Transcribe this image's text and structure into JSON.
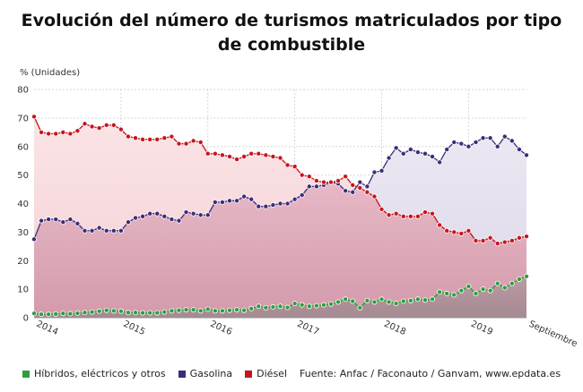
{
  "chart_data": {
    "type": "line",
    "title": "Evolución del número de turismos matriculados por tipo de combustible",
    "ylabel": "% (Unidades)",
    "ylim": [
      0,
      80
    ],
    "yticks": [
      0,
      10,
      20,
      30,
      40,
      50,
      60,
      70,
      80
    ],
    "xtick_labels": [
      "2014",
      "2015",
      "2016",
      "2017",
      "2018",
      "2019",
      "Septiembre"
    ],
    "grid": true,
    "legend_position": "bottom",
    "source": "Fuente: Anfac / Faconauto / Ganvam, www.epdata.es",
    "series": [
      {
        "name": "Híbridos, eléctricos y otros",
        "color": "#2e9e3e",
        "values": [
          1.5,
          1.2,
          1.2,
          1.3,
          1.5,
          1.4,
          1.6,
          1.8,
          2.0,
          2.3,
          2.6,
          2.4,
          2.3,
          1.8,
          1.8,
          1.7,
          1.7,
          1.7,
          2.0,
          2.4,
          2.6,
          2.8,
          2.8,
          2.4,
          3.0,
          2.4,
          2.4,
          2.6,
          2.8,
          2.6,
          3.2,
          4.0,
          3.5,
          3.8,
          4.0,
          3.6,
          5.0,
          4.5,
          4.0,
          4.2,
          4.5,
          4.8,
          5.5,
          6.5,
          5.8,
          3.5,
          6.0,
          5.5,
          6.5,
          5.5,
          5.0,
          5.8,
          6.0,
          6.5,
          6.2,
          6.5,
          9.0,
          8.5,
          8.0,
          9.5,
          11.0,
          8.5,
          10.0,
          9.5,
          12.0,
          10.5,
          12.0,
          13.5,
          14.5
        ]
      },
      {
        "name": "Gasolina",
        "color": "#3d2c7a",
        "values": [
          27.5,
          34.0,
          34.5,
          34.5,
          33.5,
          34.5,
          33.0,
          30.5,
          30.5,
          31.5,
          30.5,
          30.5,
          30.5,
          33.5,
          35.0,
          35.5,
          36.5,
          36.5,
          35.5,
          34.5,
          34.0,
          37.0,
          36.5,
          36.0,
          36.0,
          40.5,
          40.5,
          41.0,
          41.0,
          42.5,
          41.5,
          39.0,
          39.0,
          39.5,
          40.0,
          40.0,
          41.5,
          43.0,
          46.0,
          46.0,
          46.5,
          47.5,
          47.0,
          44.5,
          44.0,
          47.5,
          46.0,
          51.0,
          51.5,
          56.0,
          59.5,
          57.5,
          59.0,
          58.0,
          57.5,
          56.5,
          54.5,
          59.0,
          61.5,
          61.0,
          60.0,
          61.5,
          63.0,
          63.0,
          60.0,
          63.5,
          62.0,
          59.0,
          57.0
        ]
      },
      {
        "name": "Diésel",
        "color": "#c8141c",
        "values": [
          70.5,
          65.0,
          64.5,
          64.5,
          65.0,
          64.5,
          65.5,
          68.0,
          67.0,
          66.5,
          67.5,
          67.5,
          66.0,
          63.5,
          63.0,
          62.5,
          62.5,
          62.5,
          63.0,
          63.5,
          61.0,
          61.0,
          62.0,
          61.5,
          57.5,
          57.5,
          57.0,
          56.5,
          55.5,
          56.5,
          57.5,
          57.5,
          57.0,
          56.5,
          56.0,
          53.5,
          53.0,
          50.0,
          49.5,
          48.0,
          47.5,
          47.5,
          48.0,
          49.5,
          46.5,
          45.5,
          44.0,
          42.5,
          38.0,
          36.0,
          36.5,
          35.5,
          35.5,
          35.5,
          37.0,
          36.5,
          32.5,
          30.5,
          30.0,
          29.5,
          30.5,
          27.0,
          27.0,
          28.0,
          26.0,
          26.5,
          27.0,
          28.0,
          28.5
        ]
      }
    ]
  }
}
